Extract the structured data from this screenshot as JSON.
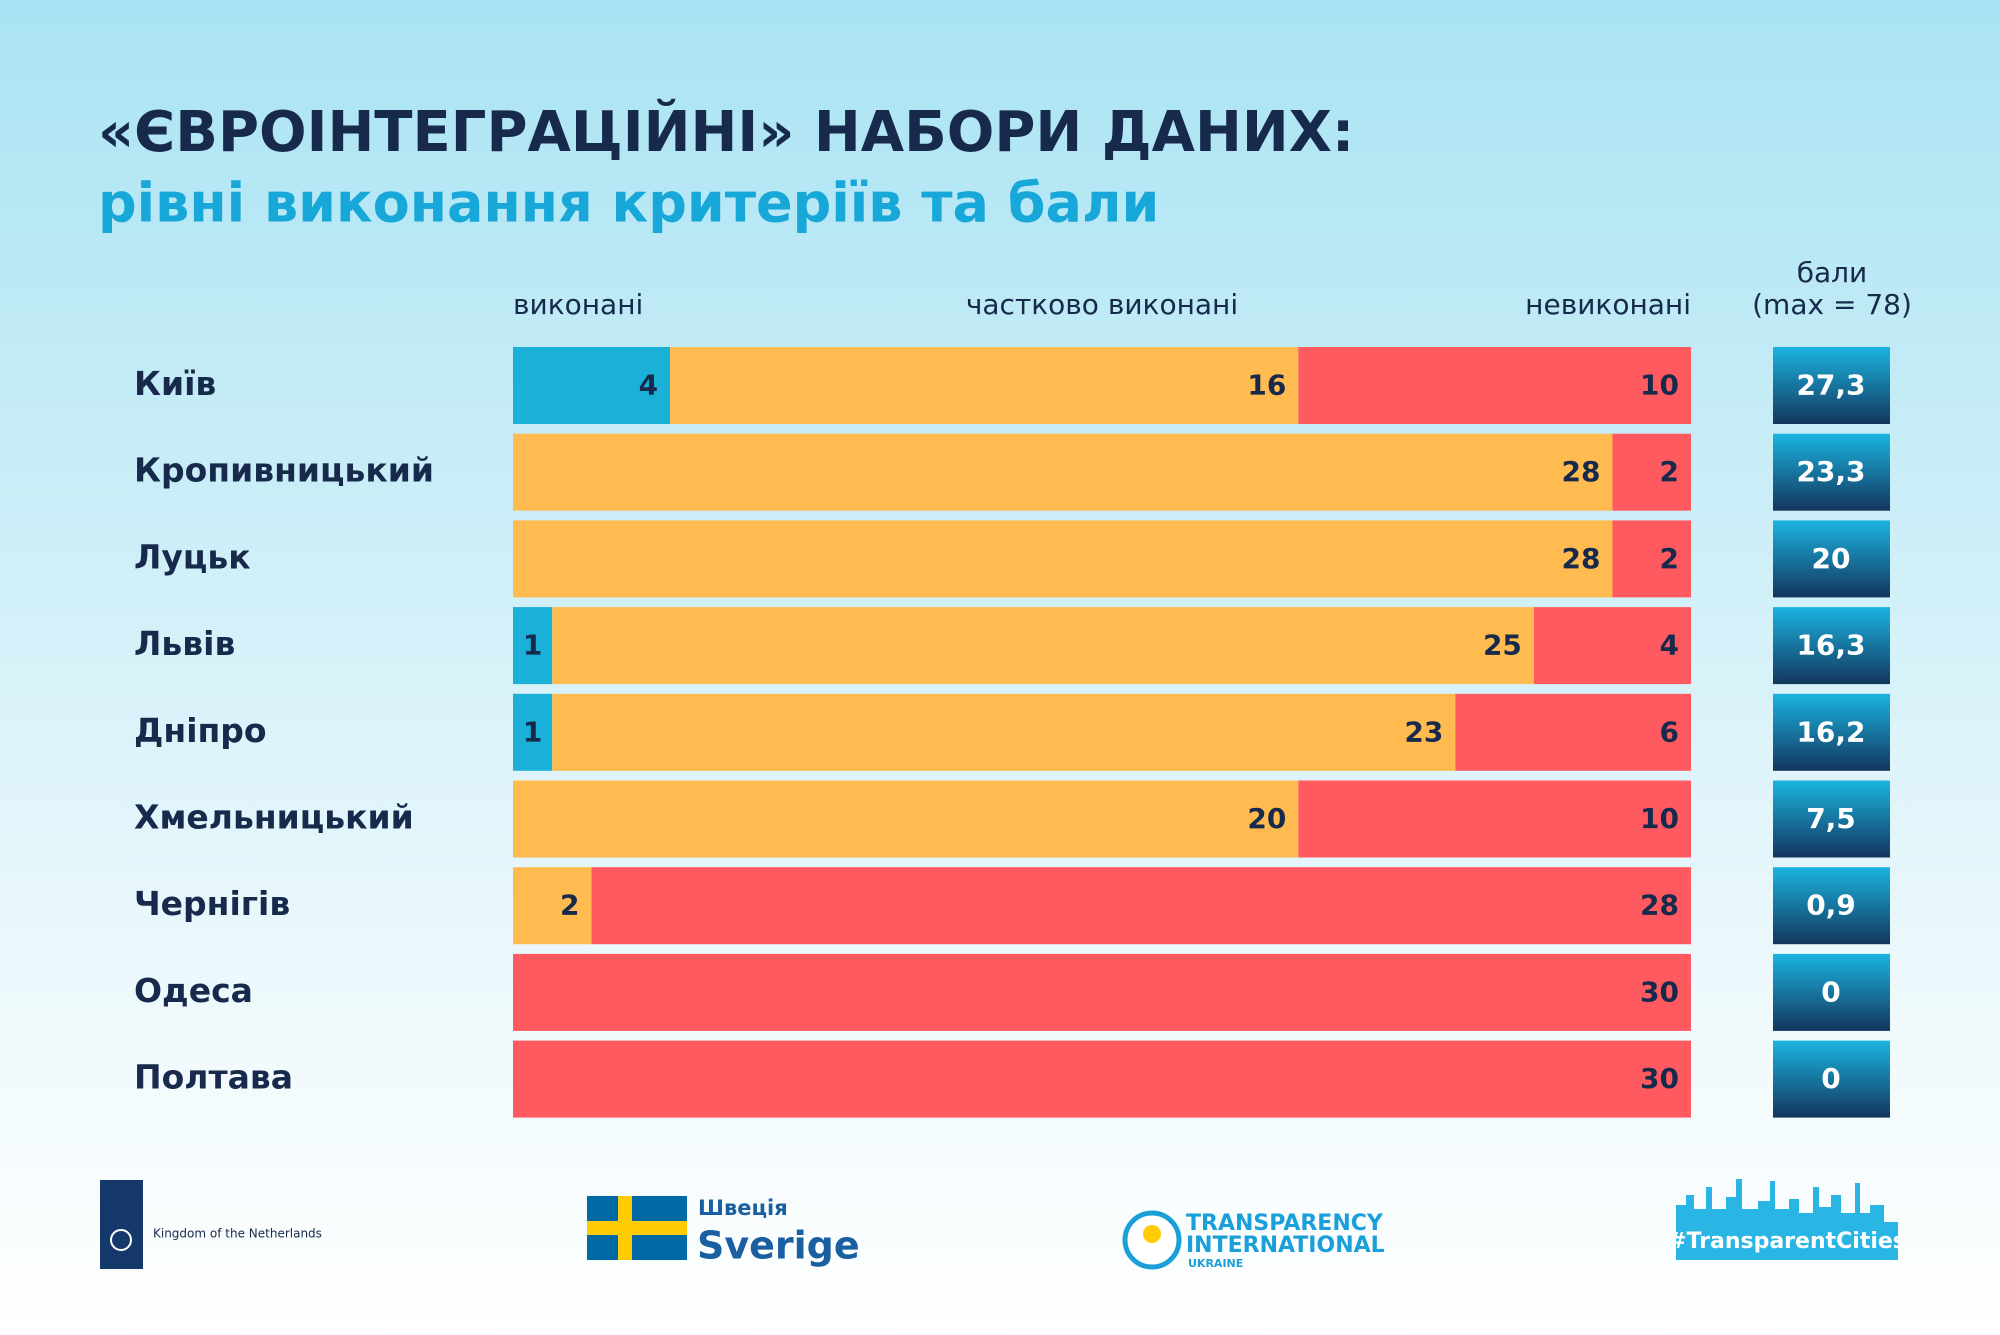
{
  "chart_data": {
    "type": "stacked-barh",
    "title": "«ЄВРОІНТЕГРАЦІЙНІ» НАБОРИ ДАНИХ:",
    "subtitle": "рівні виконання критеріїв та бали",
    "categories": [
      "Київ",
      "Кропивницький",
      "Луцьк",
      "Львів",
      "Дніпро",
      "Хмельницький",
      "Чернігів",
      "Одеса",
      "Полтава"
    ],
    "series": [
      {
        "name": "виконані",
        "color": "#1ab0d8",
        "values": [
          4,
          0,
          0,
          1,
          1,
          0,
          0,
          0,
          0
        ]
      },
      {
        "name": "частково виконані",
        "color": "#ffbb4f",
        "values": [
          16,
          28,
          28,
          25,
          23,
          20,
          2,
          0,
          0
        ]
      },
      {
        "name": "невиконані",
        "color": "#ff5a60",
        "values": [
          10,
          2,
          2,
          4,
          6,
          10,
          28,
          30,
          30
        ]
      }
    ],
    "xlim": [
      0,
      30
    ],
    "scores": {
      "title": "бали",
      "subtitle": "(max = 78)",
      "values": [
        27.3,
        23.3,
        20,
        16.3,
        16.2,
        7.5,
        0.9,
        0,
        0
      ],
      "value_labels": [
        "27,3",
        "23,3",
        "20",
        "16,3",
        "16,2",
        "7,5",
        "0,9",
        "0",
        "0"
      ]
    }
  },
  "logos": {
    "netherlands": "Kingdom of the Netherlands",
    "sweden": [
      "Швеція",
      "Sverige"
    ],
    "transparency": [
      "TRANSPARENCY",
      "INTERNATIONAL",
      "UKRAINE"
    ],
    "cities": "#TransparentCities"
  }
}
